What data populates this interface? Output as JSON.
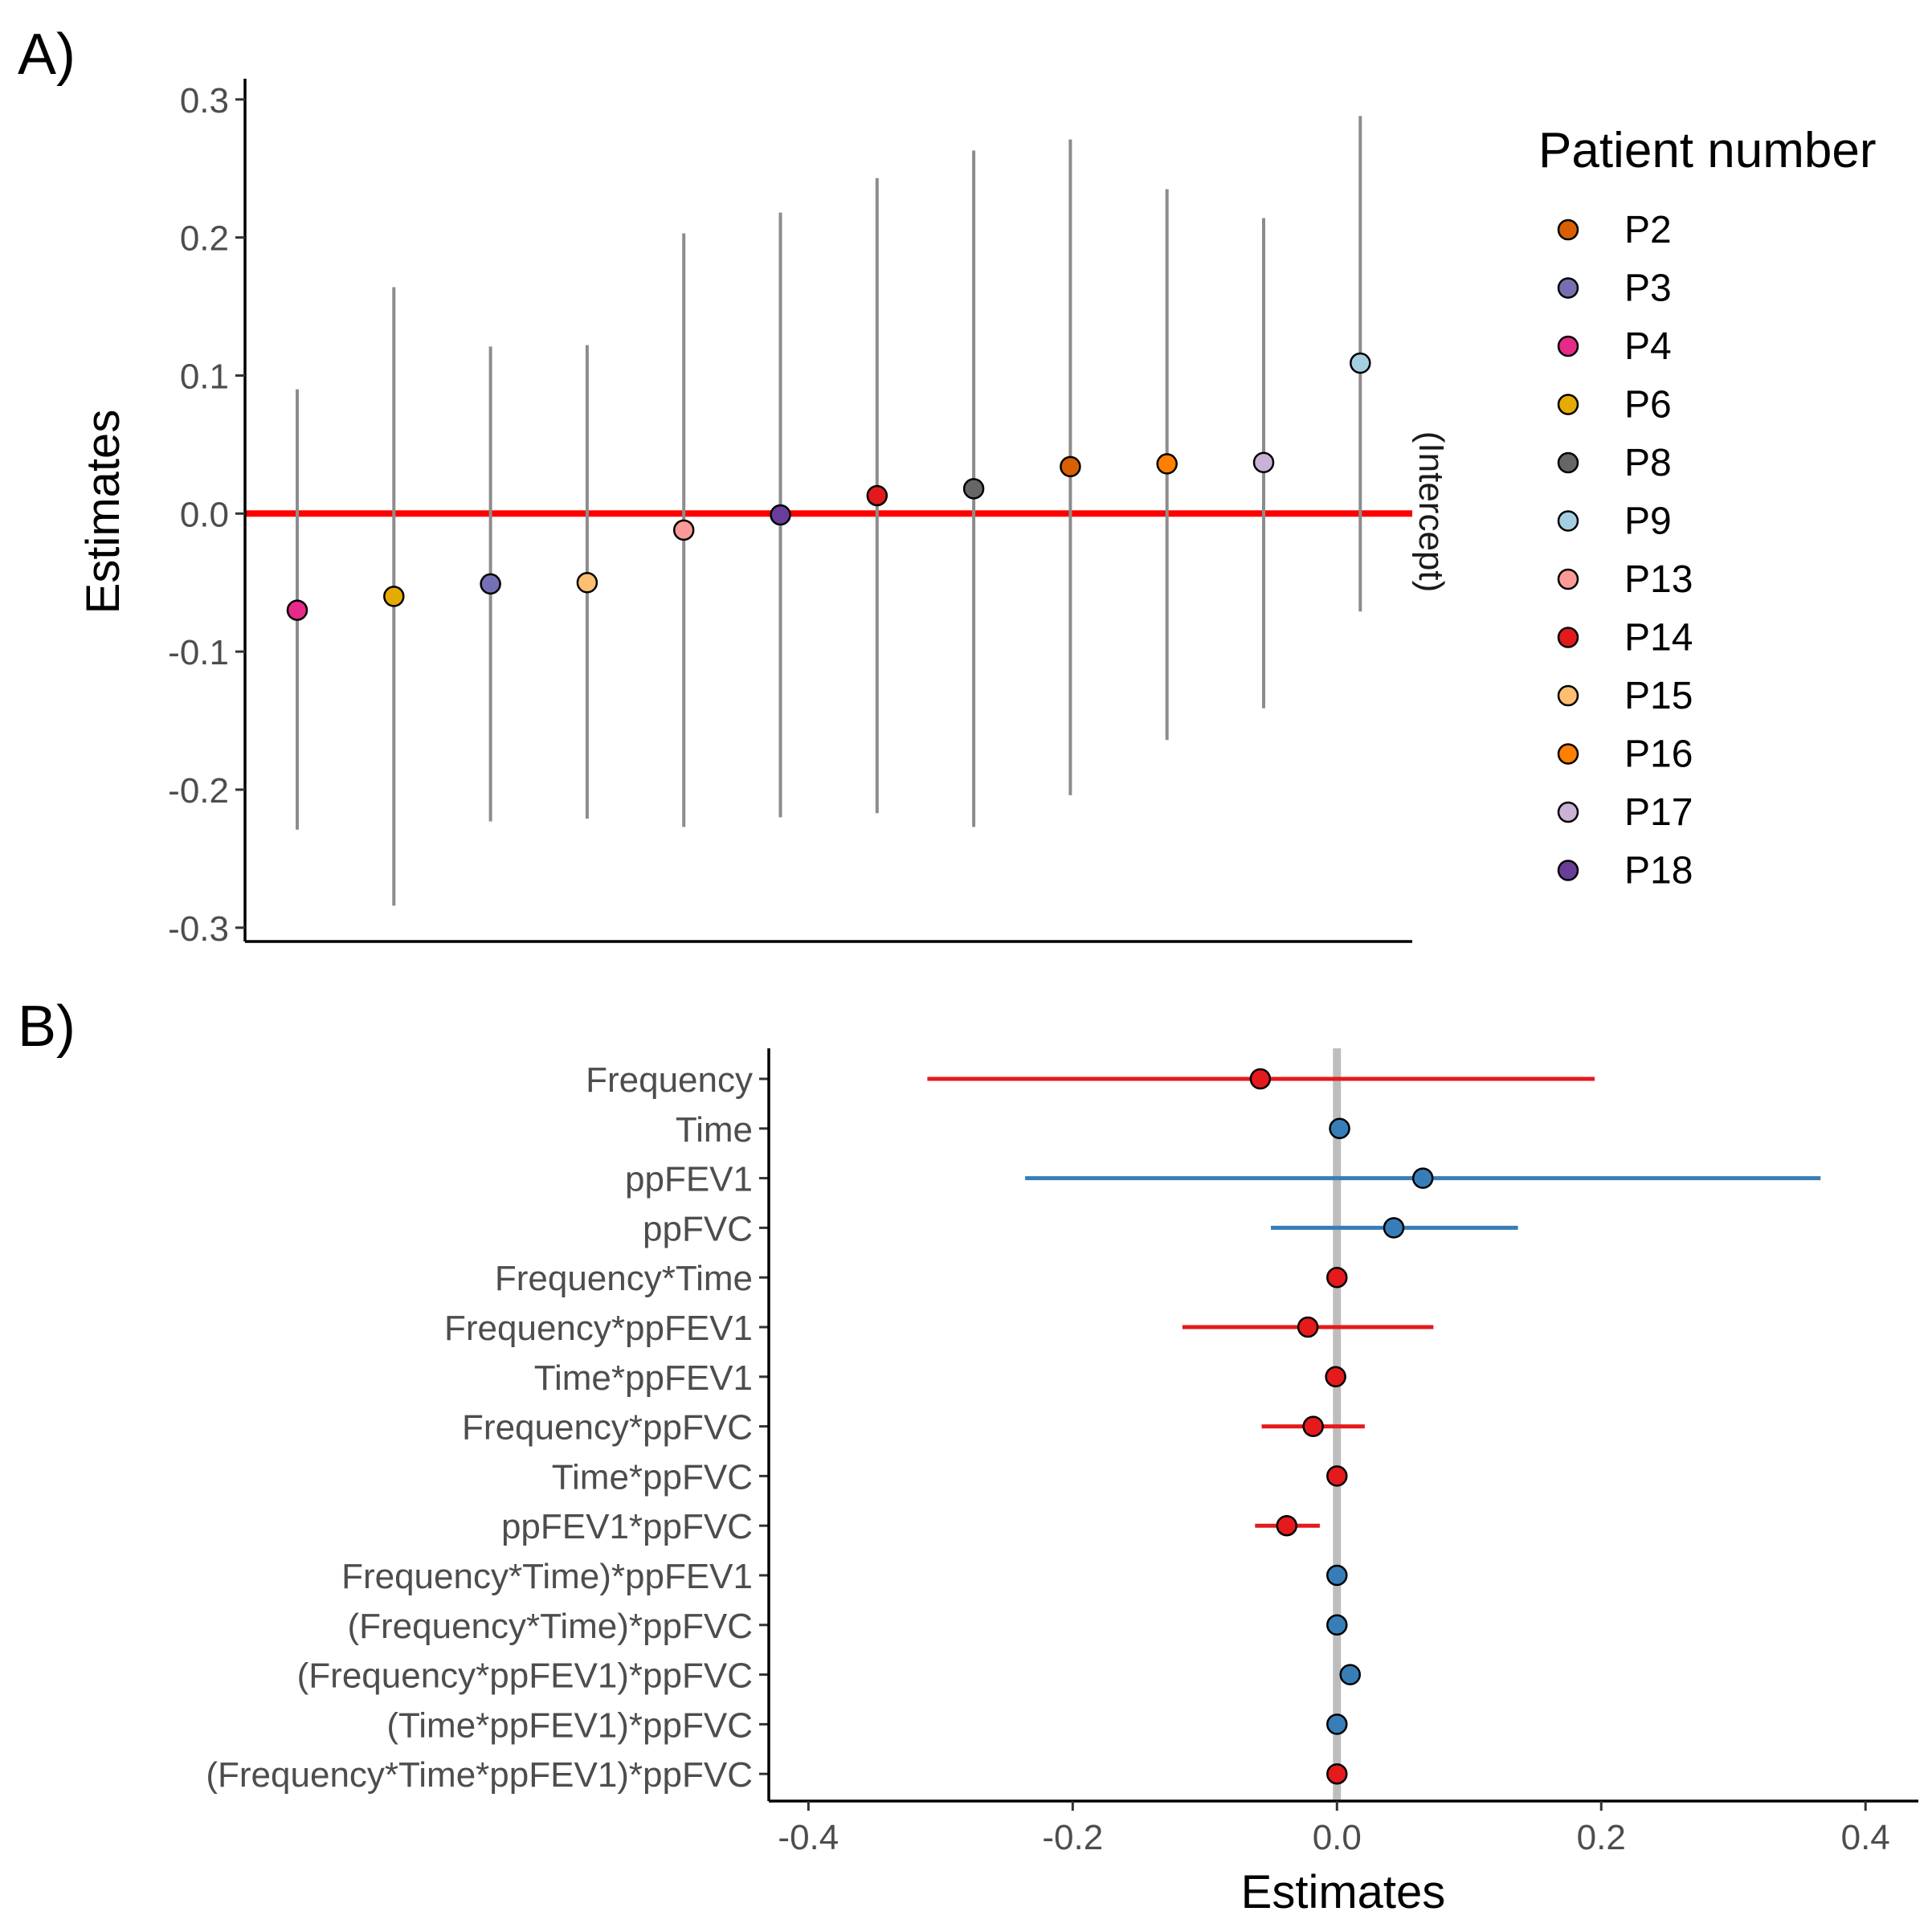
{
  "panel_a": {
    "label": "A)",
    "chart_data": {
      "type": "scatter",
      "ylabel": "Estimates",
      "ylim": [
        -0.31,
        0.315
      ],
      "yticks": [
        -0.3,
        -0.2,
        -0.1,
        0.0,
        0.1,
        0.2,
        0.3
      ],
      "ytick_labels": [
        "-0.3",
        "-0.2",
        "-0.1",
        "0.0",
        "0.1",
        "0.2",
        "0.3"
      ],
      "facet_label": "(Intercept)",
      "reference_line": {
        "y": 0,
        "color": "#ff0000"
      },
      "legend": {
        "title": "Patient number",
        "placement": "right"
      },
      "points": [
        {
          "patient": "P4",
          "estimate": -0.07,
          "lower": -0.229,
          "upper": 0.09,
          "color": "#e7298a"
        },
        {
          "patient": "P6",
          "estimate": -0.06,
          "lower": -0.284,
          "upper": 0.164,
          "color": "#e6ab02"
        },
        {
          "patient": "P3",
          "estimate": -0.051,
          "lower": -0.223,
          "upper": 0.121,
          "color": "#7570b3"
        },
        {
          "patient": "P15",
          "estimate": -0.05,
          "lower": -0.221,
          "upper": 0.122,
          "color": "#fdbf6f"
        },
        {
          "patient": "P13",
          "estimate": -0.012,
          "lower": -0.227,
          "upper": 0.203,
          "color": "#fb9a99"
        },
        {
          "patient": "P18",
          "estimate": -0.001,
          "lower": -0.22,
          "upper": 0.218,
          "color": "#6a3d9a"
        },
        {
          "patient": "P14",
          "estimate": 0.013,
          "lower": -0.217,
          "upper": 0.243,
          "color": "#e31a1c"
        },
        {
          "patient": "P8",
          "estimate": 0.018,
          "lower": -0.227,
          "upper": 0.263,
          "color": "#666666"
        },
        {
          "patient": "P2",
          "estimate": 0.034,
          "lower": -0.204,
          "upper": 0.271,
          "color": "#d95f02"
        },
        {
          "patient": "P16",
          "estimate": 0.036,
          "lower": -0.164,
          "upper": 0.235,
          "color": "#ff7f00"
        },
        {
          "patient": "P17",
          "estimate": 0.037,
          "lower": -0.141,
          "upper": 0.214,
          "color": "#cab2d6"
        },
        {
          "patient": "P9",
          "estimate": 0.109,
          "lower": -0.071,
          "upper": 0.288,
          "color": "#a6cee3"
        }
      ],
      "legend_entries": [
        {
          "name": "P2",
          "color": "#d95f02"
        },
        {
          "name": "P3",
          "color": "#7570b3"
        },
        {
          "name": "P4",
          "color": "#e7298a"
        },
        {
          "name": "P6",
          "color": "#e6ab02"
        },
        {
          "name": "P8",
          "color": "#666666"
        },
        {
          "name": "P9",
          "color": "#a6cee3"
        },
        {
          "name": "P13",
          "color": "#fb9a99"
        },
        {
          "name": "P14",
          "color": "#e31a1c"
        },
        {
          "name": "P15",
          "color": "#fdbf6f"
        },
        {
          "name": "P16",
          "color": "#ff7f00"
        },
        {
          "name": "P17",
          "color": "#cab2d6"
        },
        {
          "name": "P18",
          "color": "#6a3d9a"
        }
      ]
    }
  },
  "panel_b": {
    "label": "B)",
    "chart_data": {
      "type": "scatter",
      "xlabel": "Estimates",
      "xlim": [
        -0.43,
        0.44
      ],
      "xticks": [
        -0.4,
        -0.2,
        0.0,
        0.2,
        0.4
      ],
      "xtick_labels": [
        "-0.4",
        "-0.2",
        "0.0",
        "0.2",
        "0.4"
      ],
      "reference_line": {
        "x": 0,
        "color": "#bdbdbd"
      },
      "colors": {
        "negative": "#e41a1c",
        "positive": "#377eb8"
      },
      "terms": [
        {
          "term": "Frequency",
          "estimate": -0.058,
          "lower": -0.31,
          "upper": 0.195,
          "sign": "negative"
        },
        {
          "term": "Time",
          "estimate": 0.002,
          "lower": 0.002,
          "upper": 0.002,
          "sign": "positive"
        },
        {
          "term": "ppFEV1",
          "estimate": 0.065,
          "lower": -0.236,
          "upper": 0.366,
          "sign": "positive"
        },
        {
          "term": "ppFVC",
          "estimate": 0.043,
          "lower": -0.05,
          "upper": 0.137,
          "sign": "positive"
        },
        {
          "term": "Frequency*Time",
          "estimate": 0.0,
          "lower": 0.0,
          "upper": 0.0,
          "sign": "negative"
        },
        {
          "term": "Frequency*ppFEV1",
          "estimate": -0.022,
          "lower": -0.117,
          "upper": 0.073,
          "sign": "negative"
        },
        {
          "term": "Time*ppFEV1",
          "estimate": -0.001,
          "lower": -0.001,
          "upper": -0.001,
          "sign": "negative"
        },
        {
          "term": "Frequency*ppFVC",
          "estimate": -0.018,
          "lower": -0.057,
          "upper": 0.021,
          "sign": "negative"
        },
        {
          "term": "Time*ppFVC",
          "estimate": 0.0,
          "lower": 0.0,
          "upper": 0.0,
          "sign": "negative"
        },
        {
          "term": "ppFEV1*ppFVC",
          "estimate": -0.038,
          "lower": -0.062,
          "upper": -0.013,
          "sign": "negative"
        },
        {
          "term": "Frequency*Time)*ppFEV1",
          "estimate": 0.0,
          "lower": 0.0,
          "upper": 0.0,
          "sign": "positive"
        },
        {
          "term": "(Frequency*Time)*ppFVC",
          "estimate": 0.0,
          "lower": 0.0,
          "upper": 0.0,
          "sign": "positive"
        },
        {
          "term": "(Frequency*ppFEV1)*ppFVC",
          "estimate": 0.01,
          "lower": 0.01,
          "upper": 0.01,
          "sign": "positive"
        },
        {
          "term": "(Time*ppFEV1)*ppFVC",
          "estimate": 0.0,
          "lower": 0.0,
          "upper": 0.0,
          "sign": "positive"
        },
        {
          "term": "(Frequency*Time*ppFEV1)*ppFVC",
          "estimate": 0.0,
          "lower": 0.0,
          "upper": 0.0,
          "sign": "negative"
        }
      ]
    }
  }
}
